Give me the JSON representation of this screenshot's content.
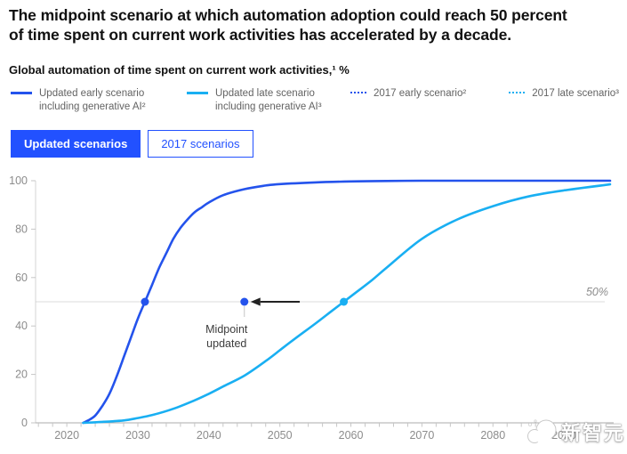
{
  "header": {
    "title": "The midpoint scenario at which automation adoption could reach 50 percent of time spent on current work activities has accelerated by a decade.",
    "subtitle": "Global automation of time spent on current work activities,¹ %"
  },
  "legend": {
    "items": [
      {
        "label": "Updated early scenario including generative AI²",
        "color": "#2453ec",
        "line_style": "solid"
      },
      {
        "label": "Updated late scenario including generative AI³",
        "color": "#19aff2",
        "line_style": "solid"
      },
      {
        "label": "2017 early scenario²",
        "color": "#2453ec",
        "line_style": "dotted"
      },
      {
        "label": "2017 late scenario³",
        "color": "#19aff2",
        "line_style": "dotted"
      }
    ]
  },
  "tabs": [
    {
      "label": "Updated scenarios",
      "active": true
    },
    {
      "label": "2017 scenarios",
      "active": false
    }
  ],
  "watermark": {
    "text": "新智元"
  },
  "palette": {
    "brand_blue": "#2251ff",
    "early_blue": "#2453ec",
    "late_blue": "#19aff2"
  },
  "chart_data": {
    "type": "line",
    "title": "Global automation of time spent on current work activities, %",
    "xlim": [
      2015.6,
      2097
    ],
    "ylim": [
      0,
      100
    ],
    "x_ticks": [
      2020,
      2030,
      2040,
      2050,
      2060,
      2070,
      2080,
      2090
    ],
    "y_ticks": [
      0,
      20,
      40,
      60,
      80,
      100
    ],
    "minor_x_tick_step": 2,
    "grid": false,
    "legend_position": "top",
    "reference_line": {
      "value": 50,
      "label": "50%"
    },
    "series": [
      {
        "name": "Updated early scenario including generative AI²",
        "color": "#2453ec",
        "midpoint_year": 2031,
        "points": [
          [
            2022.3,
            0
          ],
          [
            2023,
            1
          ],
          [
            2024,
            3
          ],
          [
            2025,
            7
          ],
          [
            2026,
            12
          ],
          [
            2027,
            19
          ],
          [
            2028,
            27
          ],
          [
            2029,
            35
          ],
          [
            2030,
            43
          ],
          [
            2031,
            50
          ],
          [
            2032,
            57
          ],
          [
            2033,
            64
          ],
          [
            2034,
            70
          ],
          [
            2035,
            76
          ],
          [
            2036,
            80.5
          ],
          [
            2037,
            84
          ],
          [
            2038,
            87
          ],
          [
            2039,
            89
          ],
          [
            2040,
            91
          ],
          [
            2042,
            94
          ],
          [
            2045,
            96.5
          ],
          [
            2048,
            98
          ],
          [
            2050,
            98.6
          ],
          [
            2055,
            99.3
          ],
          [
            2060,
            99.7
          ],
          [
            2065,
            99.9
          ],
          [
            2070,
            100
          ],
          [
            2080,
            100
          ],
          [
            2090,
            100
          ],
          [
            2096.5,
            100
          ]
        ]
      },
      {
        "name": "Updated late scenario including generative AI³",
        "color": "#19aff2",
        "midpoint_year": 2059,
        "points": [
          [
            2022.3,
            0
          ],
          [
            2025,
            0.4
          ],
          [
            2028,
            1
          ],
          [
            2030,
            2
          ],
          [
            2032,
            3.2
          ],
          [
            2035,
            5.8
          ],
          [
            2038,
            9.3
          ],
          [
            2040,
            12
          ],
          [
            2042,
            15
          ],
          [
            2045,
            19.5
          ],
          [
            2048,
            25.5
          ],
          [
            2050,
            30
          ],
          [
            2052,
            34.5
          ],
          [
            2055,
            41
          ],
          [
            2057,
            45.5
          ],
          [
            2059,
            50
          ],
          [
            2061,
            54.5
          ],
          [
            2063,
            59
          ],
          [
            2065,
            64
          ],
          [
            2070,
            76
          ],
          [
            2075,
            84
          ],
          [
            2080,
            89.5
          ],
          [
            2085,
            93.5
          ],
          [
            2090,
            96
          ],
          [
            2096.5,
            98.5
          ]
        ]
      }
    ],
    "annotation": {
      "lines": [
        "Midpoint",
        "updated"
      ],
      "year": 2045,
      "value": 50,
      "arrow_tail_year": 2052.8,
      "arrow_head_year": 2046.5
    }
  }
}
